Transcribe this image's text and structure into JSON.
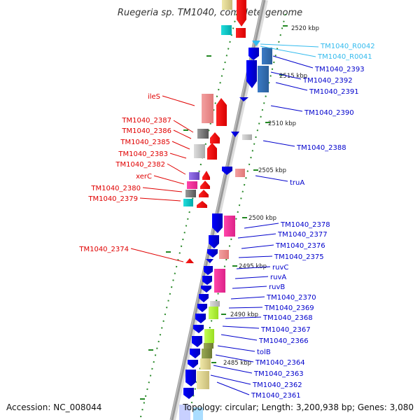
{
  "header": {
    "title": "Ruegeria sp. TM1040, complete genome"
  },
  "footer": {
    "accession": "Accession: NC_008044",
    "topology": "Topology: circular; Length: 3,200,938 bp; Genes: 3,080"
  },
  "colors": {
    "forward_label": "#e00000",
    "reverse_label": "#0000cc",
    "rna_label": "#33bbee",
    "tick": "#228822",
    "backbone": "#999999"
  },
  "scale_labels": [
    "2520 kbp",
    "2515 kbp",
    "2510 kbp",
    "2505 kbp",
    "2500 kbp",
    "2495 kbp",
    "2490 kbp",
    "2485 kbp"
  ],
  "left_labels": [
    "ileS",
    "TM1040_2387",
    "TM1040_2386",
    "TM1040_2385",
    "TM1040_2383",
    "TM1040_2382",
    "xerC",
    "TM1040_2380",
    "TM1040_2379",
    "TM1040_2374"
  ],
  "right_labels": [
    "TM1040_R0042",
    "TM1040_R0041",
    "TM1040_2393",
    "TM1040_2392",
    "TM1040_2391",
    "TM1040_2390",
    "TM1040_2388",
    "truA",
    "TM1040_2378",
    "TM1040_2377",
    "TM1040_2376",
    "TM1040_2375",
    "ruvC",
    "ruvA",
    "ruvB",
    "TM1040_2370",
    "TM1040_2369",
    "TM1040_2368",
    "TM1040_2367",
    "TM1040_2366",
    "tolB",
    "TM1040_2364",
    "TM1040_2363",
    "TM1040_2362",
    "TM1040_2361"
  ]
}
